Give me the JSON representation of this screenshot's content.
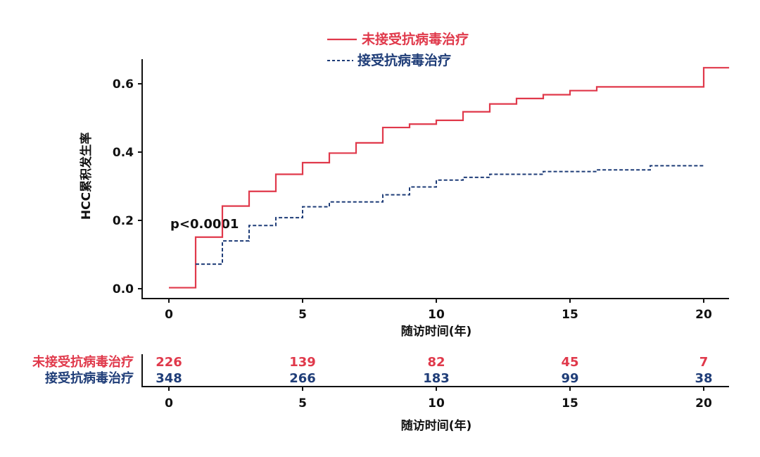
{
  "chart_data": {
    "type": "line",
    "subtype": "step (cumulative incidence)",
    "xlabel": "随访时间(年)",
    "ylabel": "HCC累积发生率",
    "xlim": [
      -1,
      21
    ],
    "ylim": [
      -0.02,
      0.67
    ],
    "xticks": [
      "0",
      "5",
      "10",
      "15",
      "20"
    ],
    "yticks": [
      "0.0",
      "0.2",
      "0.4",
      "0.6"
    ],
    "grid": false,
    "legend_position": "top",
    "annotation": "p<0.0001",
    "series": [
      {
        "name": "未接受抗病毒治疗",
        "color": "#e0394b",
        "style": "solid",
        "x": [
          0,
          1,
          2,
          3,
          4,
          5,
          6,
          7,
          8,
          9,
          10,
          11,
          12,
          13,
          14,
          15,
          16,
          20,
          20.95
        ],
        "y": [
          0.003,
          0.151,
          0.242,
          0.285,
          0.335,
          0.369,
          0.397,
          0.427,
          0.472,
          0.482,
          0.493,
          0.518,
          0.541,
          0.557,
          0.568,
          0.58,
          0.591,
          0.647,
          0.647
        ]
      },
      {
        "name": "接受抗病毒治疗",
        "color": "#1f3d78",
        "style": "dashed",
        "x": [
          1,
          2,
          3,
          4,
          5,
          6,
          8,
          9,
          10,
          11,
          12,
          14,
          16,
          18,
          20
        ],
        "y": [
          0.072,
          0.14,
          0.185,
          0.208,
          0.24,
          0.254,
          0.275,
          0.298,
          0.318,
          0.326,
          0.335,
          0.343,
          0.348,
          0.36,
          0.36
        ]
      }
    ],
    "risk_table": {
      "times": [
        "0",
        "5",
        "10",
        "15",
        "20"
      ],
      "xlabel": "随访时间(年)",
      "rows": [
        {
          "label": "未接受抗病毒治疗",
          "color": "#e0394b",
          "values": [
            "226",
            "139",
            "82",
            "45",
            "7"
          ]
        },
        {
          "label": "接受抗病毒治疗",
          "color": "#1f3d78",
          "values": [
            "348",
            "266",
            "183",
            "99",
            "38"
          ]
        }
      ]
    }
  }
}
